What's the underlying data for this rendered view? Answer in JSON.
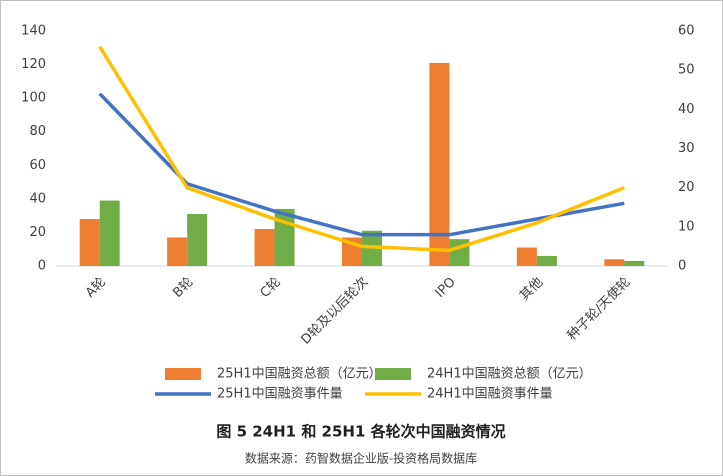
{
  "chart_data": {
    "type": "bar-line",
    "title": "图 5 24H1 和 25H1 各轮次中国融资情况",
    "source": "数据来源：药智数据企业版-投资格局数据库",
    "categories": [
      "A轮",
      "B轮",
      "C轮",
      "D轮及以后轮次",
      "IPO",
      "其他",
      "种子轮/天使轮"
    ],
    "series": [
      {
        "name": "25H1中国融资总额（亿元）",
        "type": "bar",
        "color": "#ed7d31",
        "values": [
          28,
          17,
          22,
          17,
          121,
          11,
          4
        ]
      },
      {
        "name": "24H1中国融资总额（亿元）",
        "type": "bar",
        "color": "#70ad47",
        "values": [
          39,
          31,
          34,
          21,
          16,
          6,
          3
        ]
      },
      {
        "name": "25H1中国融资事件量",
        "type": "line",
        "axis": "y2",
        "color": "#4472c4",
        "values": [
          44,
          21,
          14,
          8,
          8,
          12,
          16
        ]
      },
      {
        "name": "24H1中国融资事件量",
        "type": "line",
        "axis": "y2",
        "color": "#ffc000",
        "values": [
          56,
          20,
          12,
          5,
          4,
          11,
          20
        ]
      }
    ],
    "ylim": [
      0,
      140
    ],
    "yticks": [
      0,
      20,
      40,
      60,
      80,
      100,
      120,
      140
    ],
    "y2lim": [
      0,
      60
    ],
    "y2ticks": [
      0,
      10,
      20,
      30,
      40,
      50,
      60
    ]
  }
}
